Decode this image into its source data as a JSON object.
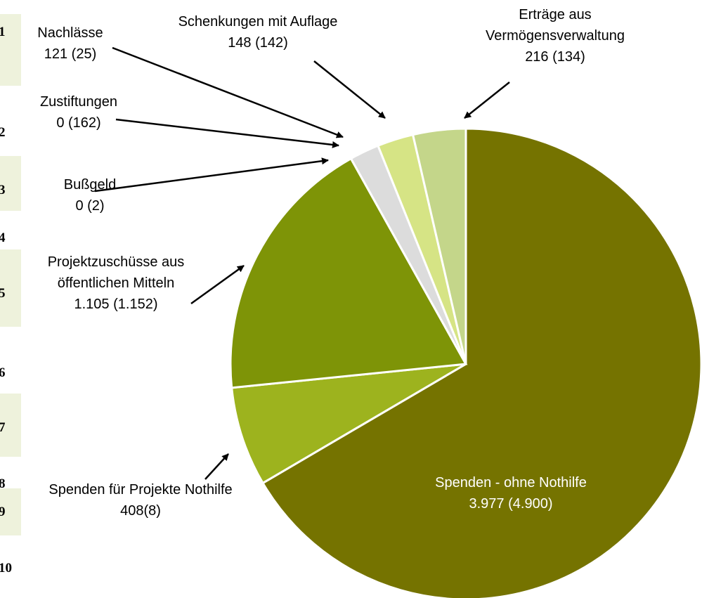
{
  "chart_data": {
    "type": "pie",
    "categories": [
      "Spenden - ohne Nothilfe",
      "Spenden für Projekte Nothilfe",
      "Projektzuschüsse aus öffentlichen Mitteln",
      "Bußgeld",
      "Zustiftungen",
      "Nachlässe",
      "Schenkungen mit Auflage",
      "Erträge aus Vermögensverwaltung"
    ],
    "values": [
      3977,
      408,
      1105,
      0,
      0,
      121,
      148,
      216
    ],
    "value_labels": [
      "3.977 (4.900)",
      "408(8)",
      "1.105 (1.152)",
      "0 (2)",
      "0 (162)",
      "121 (25)",
      "148 (142)",
      "216 (134)"
    ],
    "colors": [
      "#757300",
      "#9db31e",
      "#7e9407",
      "#c9d97a",
      "#e8eeb0",
      "#dcdcdc",
      "#d6e485",
      "#c4d68a"
    ]
  },
  "background_rows": [
    "1",
    "2",
    "3",
    "4",
    "5",
    "6",
    "7",
    "8",
    "9",
    "10"
  ]
}
